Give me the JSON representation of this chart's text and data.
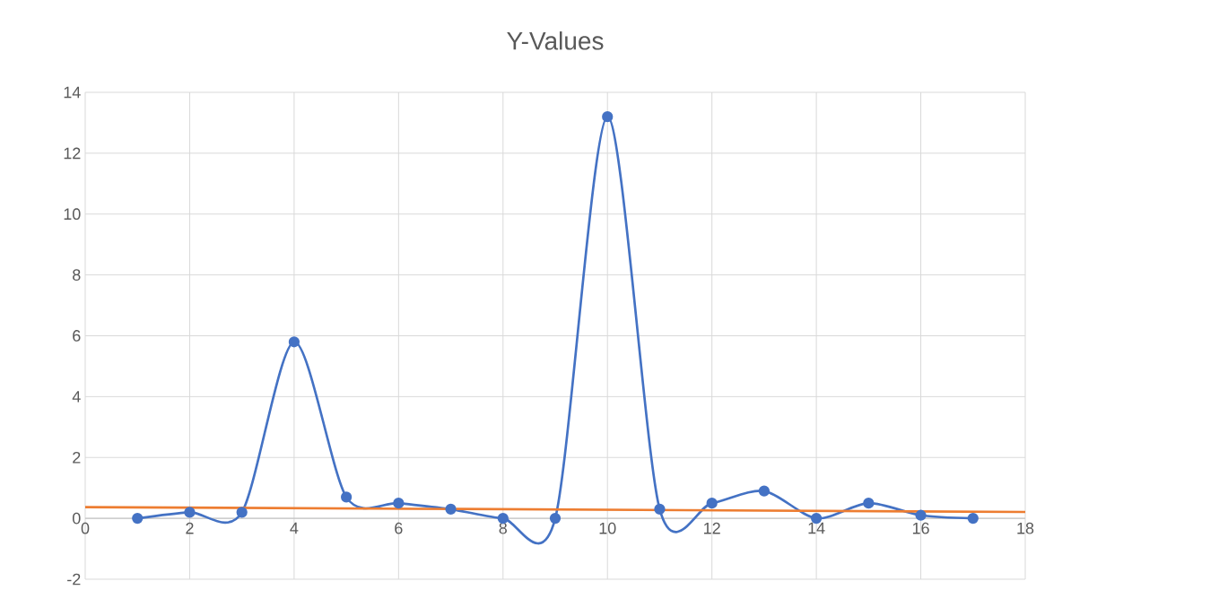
{
  "chart_data": {
    "type": "line",
    "title": "Y-Values",
    "x": [
      1,
      2,
      3,
      4,
      5,
      6,
      7,
      8,
      9,
      10,
      11,
      12,
      13,
      14,
      15,
      16,
      17
    ],
    "series": [
      {
        "color": "#4472c4",
        "values": [
          0,
          0.2,
          0.2,
          5.8,
          0.7,
          0.5,
          0.3,
          0,
          0,
          13.2,
          0.3,
          0.5,
          0.9,
          0,
          0.5,
          0.1,
          0
        ]
      },
      {
        "type": "line",
        "color": "#ed7d31",
        "marker": "none",
        "x": [
          0,
          18
        ],
        "values": [
          0.37,
          0.21
        ]
      }
    ],
    "xlim": [
      0,
      18
    ],
    "ylim": [
      -2,
      14
    ],
    "xticks": [
      0,
      2,
      4,
      6,
      8,
      10,
      12,
      14,
      16,
      18
    ],
    "yticks": [
      -2,
      0,
      2,
      4,
      6,
      8,
      10,
      12,
      14
    ],
    "grid": true,
    "marker": "circle",
    "line_style": "solid"
  }
}
